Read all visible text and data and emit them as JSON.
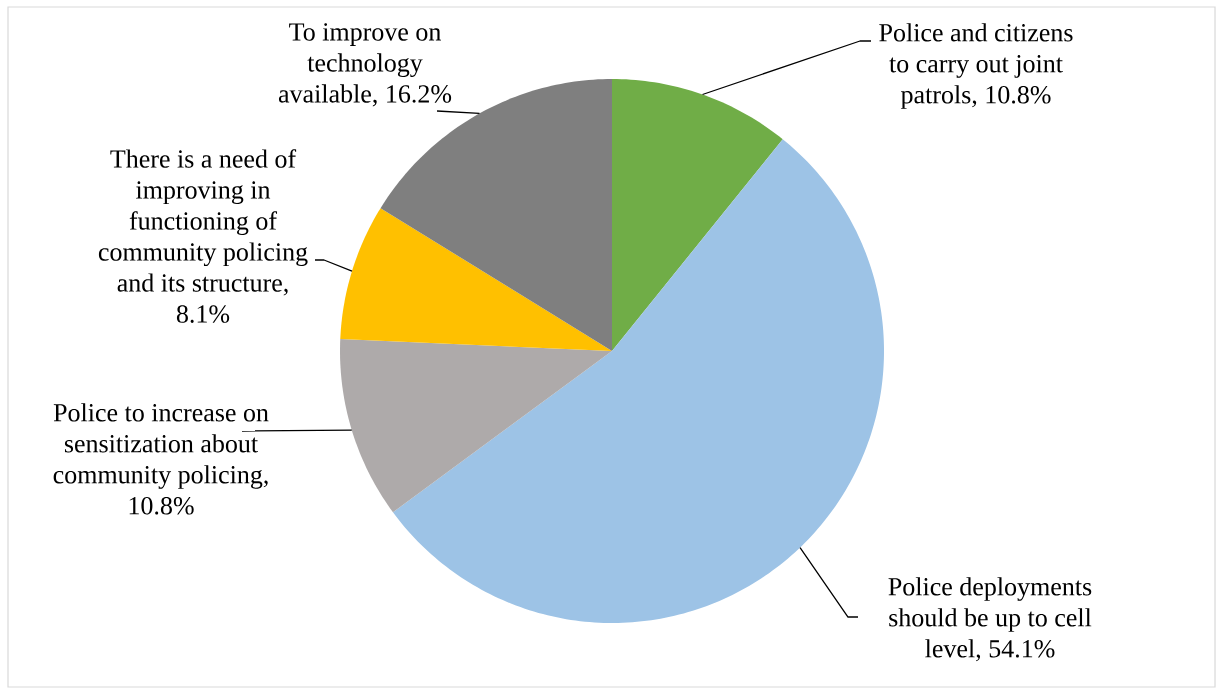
{
  "chart_data": {
    "type": "pie",
    "categories": [
      "Police and citizens to carry out joint patrols, 10.8%",
      "Police deployments should be up to cell level, 54.1%",
      "Police to increase on sensitization about community policing, 10.8%",
      "There is a need of improving in functioning of community policing and its structure, 8.1%",
      "To improve on technology available, 16.2%"
    ],
    "values": [
      10.8,
      54.1,
      10.8,
      8.1,
      16.2
    ],
    "colors": [
      "#70ad47",
      "#9dc3e6",
      "#aeaaaa",
      "#ffc000",
      "#7f7f7f"
    ]
  }
}
